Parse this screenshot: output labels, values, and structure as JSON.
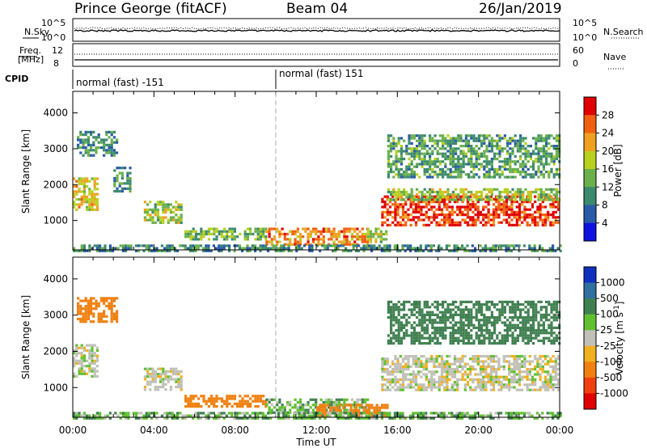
{
  "header": {
    "station": "Prince George (fitACF)",
    "beam": "Beam 04",
    "date": "26/Jan/2019"
  },
  "side_labels": {
    "nsky": "N.Sky",
    "nsearch": "N.Search",
    "freq": "Freq.",
    "freq_unit": "[MHz]",
    "nave": "Nave",
    "cpid": "CPID"
  },
  "noise_panel": {
    "left_ticks": [
      "10^5",
      "10^0"
    ],
    "right_ticks": [
      "10^5",
      "10^0"
    ]
  },
  "freq_panel": {
    "left_ticks": [
      "12",
      "8"
    ],
    "right_ticks": [
      "60",
      "0"
    ]
  },
  "cpid_segments": [
    {
      "label": "normal (fast) -151",
      "start_hour": 0
    },
    {
      "label": "normal (fast) 151",
      "start_hour": 10
    }
  ],
  "x_axis": {
    "label": "Time UT",
    "ticks": [
      "00:00",
      "04:00",
      "08:00",
      "12:00",
      "16:00",
      "20:00",
      "00:00"
    ]
  },
  "chart_data": [
    {
      "type": "heatmap",
      "title": "Power",
      "xlabel": "Time UT",
      "ylabel": "Slant Range [km]",
      "xlim": [
        0,
        24
      ],
      "ylim": [
        180,
        4600
      ],
      "y_ticks": [
        1000,
        2000,
        3000,
        4000
      ],
      "colorbar_label": "Power [dB]",
      "colorbar_ticks": [
        "4",
        "8",
        "12",
        "16",
        "20",
        "24",
        "28"
      ],
      "colorbar_colors": [
        "#1010e0",
        "#2a5aa8",
        "#3b8a6e",
        "#6ab04c",
        "#b8d020",
        "#f0a020",
        "#f06010",
        "#e00000"
      ],
      "echo_regions": [
        {
          "t0": 0.0,
          "t1": 1.2,
          "r0": 1300,
          "r1": 2200,
          "power": 18
        },
        {
          "t0": 0.2,
          "t1": 2.2,
          "r0": 2800,
          "r1": 3500,
          "power": 8
        },
        {
          "t0": 2.0,
          "t1": 2.8,
          "r0": 1800,
          "r1": 2500,
          "power": 8
        },
        {
          "t0": 3.5,
          "t1": 5.3,
          "r0": 950,
          "r1": 1550,
          "power": 14
        },
        {
          "t0": 5.5,
          "t1": 9.5,
          "r0": 450,
          "r1": 800,
          "power": 12
        },
        {
          "t0": 9.5,
          "t1": 14.5,
          "r0": 350,
          "r1": 800,
          "power": 22
        },
        {
          "t0": 14.5,
          "t1": 15.5,
          "r0": 400,
          "r1": 800,
          "power": 14
        },
        {
          "t0": 15.2,
          "t1": 24.0,
          "r0": 900,
          "r1": 1700,
          "power": 26
        },
        {
          "t0": 15.5,
          "t1": 24.0,
          "r0": 1600,
          "r1": 1900,
          "power": 14
        },
        {
          "t0": 15.5,
          "t1": 24.0,
          "r0": 2200,
          "r1": 3400,
          "power": 10
        },
        {
          "t0": 0.0,
          "t1": 24.0,
          "r0": 180,
          "r1": 330,
          "power": 8
        }
      ]
    },
    {
      "type": "heatmap",
      "title": "Velocity",
      "xlabel": "Time UT",
      "ylabel": "Slant Range [km]",
      "xlim": [
        0,
        24
      ],
      "ylim": [
        180,
        4600
      ],
      "y_ticks": [
        1000,
        2000,
        3000,
        4000
      ],
      "colorbar_label": "Velocity [m s^-1]",
      "colorbar_ticks": [
        "1000",
        "500",
        "100",
        "25",
        "-25",
        "-100",
        "-500",
        "-1000"
      ],
      "colorbar_colors": [
        "#1030c0",
        "#3070a0",
        "#408050",
        "#60c030",
        "#c0c0b8",
        "#f0b020",
        "#f08010",
        "#f04010",
        "#e00000"
      ],
      "echo_regions": [
        {
          "t0": 0.0,
          "t1": 1.2,
          "r0": 1300,
          "r1": 2200,
          "velocity": 0
        },
        {
          "t0": 0.2,
          "t1": 2.2,
          "r0": 2800,
          "r1": 3500,
          "velocity": -200
        },
        {
          "t0": 3.5,
          "t1": 5.3,
          "r0": 950,
          "r1": 1550,
          "velocity": 0
        },
        {
          "t0": 5.5,
          "t1": 9.5,
          "r0": 450,
          "r1": 800,
          "velocity": -150
        },
        {
          "t0": 9.5,
          "t1": 14.5,
          "r0": 300,
          "r1": 700,
          "velocity": 50
        },
        {
          "t0": 12.0,
          "t1": 15.5,
          "r0": 250,
          "r1": 550,
          "velocity": -100
        },
        {
          "t0": 15.2,
          "t1": 24.0,
          "r0": 900,
          "r1": 1900,
          "velocity": 0
        },
        {
          "t0": 15.5,
          "t1": 24.0,
          "r0": 2200,
          "r1": 3400,
          "velocity": 150
        },
        {
          "t0": 0.0,
          "t1": 24.0,
          "r0": 180,
          "r1": 330,
          "velocity": 50
        }
      ]
    }
  ]
}
